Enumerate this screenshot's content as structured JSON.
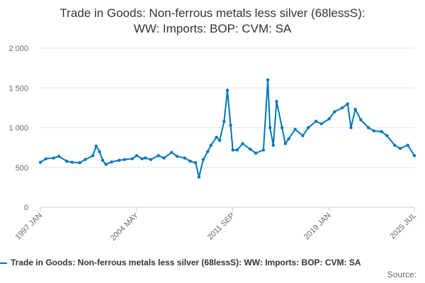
{
  "chart_data": {
    "type": "line",
    "title_lines": [
      "Trade in Goods: Non-ferrous metals less silver (68lessS):",
      "WW: Imports: BOP: CVM: SA"
    ],
    "xlabel": "",
    "ylabel": "",
    "ylim": [
      0,
      2000
    ],
    "y_ticks": [
      0,
      500,
      1000,
      1500,
      2000
    ],
    "y_tick_labels": [
      "0",
      "500",
      "1 000",
      "1 500",
      "2 000"
    ],
    "x_range": [
      "1997 JAN",
      "2025 JUL"
    ],
    "x_ticks": [
      "1997 JAN",
      "2004 MAY",
      "2011 SEP",
      "2019 JAN",
      "2025 JUL"
    ],
    "grid": true,
    "legend_position": "bottom",
    "credits": "Source:",
    "color": "#0077bb",
    "series": [
      {
        "name": "Trade in Goods: Non-ferrous metals less silver (68lessS): WW: Imports: BOP: CVM: SA",
        "x": [
          "1997 JAN",
          "1997 JUN",
          "1998 JAN",
          "1998 JUN",
          "1999 JAN",
          "1999 JUN",
          "2000 JAN",
          "2000 JUN",
          "2001 JAN",
          "2001 APR",
          "2001 JUL",
          "2001 OCT",
          "2002 JAN",
          "2002 JUN",
          "2003 JAN",
          "2003 JUN",
          "2004 JAN",
          "2004 MAY",
          "2004 OCT",
          "2005 JAN",
          "2005 JUN",
          "2006 JAN",
          "2006 JUN",
          "2007 JAN",
          "2007 JUN",
          "2008 JAN",
          "2008 JUN",
          "2008 NOV",
          "2009 FEB",
          "2009 JUN",
          "2009 OCT",
          "2010 JAN",
          "2010 JUN",
          "2010 SEP",
          "2011 JAN",
          "2011 APR",
          "2011 JUL",
          "2011 SEP",
          "2012 JAN",
          "2012 JUN",
          "2013 JAN",
          "2013 JUN",
          "2014 JAN",
          "2014 MAY",
          "2014 JUL",
          "2014 OCT",
          "2015 JAN",
          "2015 JUN",
          "2015 SEP",
          "2015 DEC",
          "2016 JUN",
          "2017 JAN",
          "2017 JUN",
          "2018 JAN",
          "2018 JUN",
          "2019 JAN",
          "2019 JUN",
          "2020 JAN",
          "2020 JUN",
          "2020 SEP",
          "2021 JAN",
          "2021 JUN",
          "2022 JAN",
          "2022 JUN",
          "2023 JAN",
          "2023 JUN",
          "2024 JAN",
          "2024 JUN",
          "2025 JAN",
          "2025 JUL"
        ],
        "values": [
          565,
          610,
          620,
          640,
          580,
          565,
          560,
          600,
          650,
          770,
          700,
          590,
          540,
          570,
          590,
          600,
          610,
          650,
          610,
          620,
          600,
          650,
          620,
          690,
          640,
          620,
          580,
          560,
          380,
          600,
          700,
          780,
          880,
          840,
          1080,
          1470,
          1030,
          720,
          720,
          800,
          730,
          680,
          720,
          1600,
          1000,
          780,
          1330,
          1000,
          800,
          860,
          980,
          900,
          1000,
          1080,
          1050,
          1110,
          1200,
          1250,
          1300,
          1000,
          1230,
          1100,
          1000,
          960,
          950,
          900,
          780,
          740,
          780,
          650
        ]
      }
    ]
  }
}
